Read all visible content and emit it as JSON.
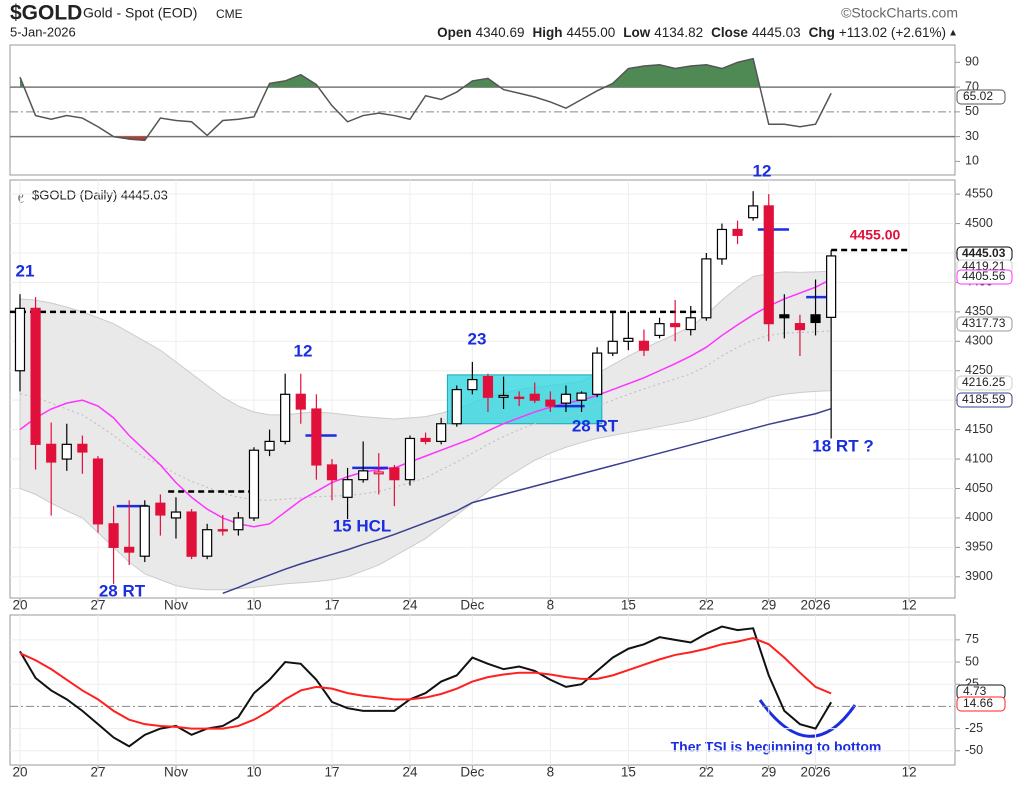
{
  "chart_data": [
    {
      "type": "line",
      "series": [
        {
          "color": "#555555",
          "values": [
            78,
            47,
            44,
            47,
            45,
            38,
            30,
            28,
            27,
            45,
            43,
            42,
            31,
            43,
            44,
            46,
            73,
            75,
            80,
            72,
            55,
            42,
            47,
            49,
            47,
            44,
            63,
            60,
            66,
            75,
            77,
            68,
            65,
            62,
            58,
            53,
            60,
            67,
            73,
            85,
            87,
            88,
            85,
            87,
            88,
            85,
            90,
            93,
            40,
            40,
            38,
            40,
            65.02
          ]
        }
      ],
      "upper_fill": "#4f8a55",
      "lower_fill": "#c0392b",
      "upper_level": 70,
      "lower_level": 30,
      "levels": [
        30,
        50,
        70
      ],
      "xlim": [
        -0.64,
        59.94
      ],
      "ylim": [
        -1,
        104
      ],
      "yticks": [
        10,
        30,
        50,
        70,
        90
      ]
    },
    {
      "type": "candlestick",
      "symbol": "$GOLD",
      "name": "Gold - Spot (EOD)",
      "exchange": "CME",
      "source": "©StockCharts.com",
      "date": "5-Jan-2026",
      "stats": [
        {
          "label": "Open",
          "value": 4340.69
        },
        {
          "label": "High",
          "value": 4455,
          "value_label": "4455.00"
        },
        {
          "label": "Low",
          "value": 4134.82
        },
        {
          "label": "Close",
          "value": 4445.03
        },
        {
          "label": "Chg",
          "value": 113.02,
          "value_label": "+113.02 (+2.61%)"
        }
      ],
      "title": "$GOLD (Daily) 4445.03",
      "open": [
        4250,
        4356,
        4125,
        4100,
        4125,
        4100,
        3990,
        3950,
        3935,
        4025,
        4000,
        4010,
        3935,
        3980,
        3980,
        4000,
        4115,
        4130,
        4210,
        4185,
        4090,
        4035,
        4065,
        4075,
        4085,
        4065,
        4135,
        4130,
        4160,
        4218,
        4240,
        4205,
        4205,
        4210,
        4200,
        4195,
        4200,
        4210,
        4280,
        4300,
        4300,
        4310,
        4330,
        4320,
        4340,
        4440,
        4490,
        4510,
        4530,
        4345,
        4330,
        4345,
        4340.69
      ],
      "high": [
        4380,
        4375,
        4162,
        4160,
        4140,
        4105,
        4020,
        4030,
        4030,
        4040,
        4035,
        4015,
        3990,
        4005,
        4010,
        4120,
        4150,
        4245,
        4245,
        4210,
        4100,
        4085,
        4130,
        4110,
        4090,
        4140,
        4145,
        4170,
        4225,
        4265,
        4245,
        4240,
        4215,
        4230,
        4215,
        4225,
        4215,
        4290,
        4350,
        4350,
        4320,
        4340,
        4370,
        4360,
        4450,
        4500,
        4505,
        4555,
        4550,
        4380,
        4345,
        4405,
        4455
      ],
      "low": [
        4215,
        4082,
        4004,
        4080,
        4075,
        3975,
        3888,
        3920,
        3925,
        3970,
        3965,
        3930,
        3930,
        3970,
        3970,
        3995,
        4105,
        4125,
        4160,
        4065,
        4030,
        3998,
        4060,
        4040,
        4020,
        4055,
        4125,
        4125,
        4155,
        4210,
        4180,
        4185,
        4190,
        4195,
        4180,
        4180,
        4180,
        4205,
        4275,
        4285,
        4275,
        4305,
        4300,
        4310,
        4335,
        4430,
        4465,
        4505,
        4300,
        4305,
        4275,
        4310,
        4134.82
      ],
      "close": [
        4356,
        4125,
        4095,
        4125,
        4112,
        3990,
        3950,
        3942,
        4020,
        4005,
        4010,
        3935,
        3980,
        3978,
        4000,
        4115,
        4130,
        4210,
        4185,
        4090,
        4065,
        4065,
        4080,
        4078,
        4065,
        4135,
        4130,
        4160,
        4218,
        4235,
        4205,
        4208,
        4205,
        4200,
        4190,
        4210,
        4212,
        4280,
        4300,
        4305,
        4285,
        4330,
        4325,
        4340,
        4440,
        4490,
        4480,
        4530,
        4330,
        4340,
        4320,
        4332,
        4445.03
      ],
      "up_color": "#000000",
      "down_color": "#e0103a",
      "band": {
        "fill": "#e9e9e9",
        "color": "#cccccc",
        "upper": [
          4372,
          4370,
          4365,
          4358,
          4350,
          4340,
          4330,
          4315,
          4300,
          4285,
          4265,
          4245,
          4225,
          4205,
          4190,
          4180,
          4175,
          4175,
          4178,
          4180,
          4178,
          4175,
          4172,
          4170,
          4168,
          4170,
          4172,
          4178,
          4185,
          4195,
          4205,
          4212,
          4218,
          4222,
          4225,
          4228,
          4232,
          4245,
          4260,
          4275,
          4288,
          4300,
          4312,
          4325,
          4345,
          4370,
          4392,
          4410,
          4415,
          4418,
          4417,
          4418,
          4419.21
        ],
        "lower": [
          4050,
          4040,
          4025,
          4012,
          4000,
          3975,
          3950,
          3925,
          3905,
          3895,
          3885,
          3880,
          3878,
          3878,
          3880,
          3882,
          3885,
          3888,
          3890,
          3892,
          3895,
          3900,
          3910,
          3920,
          3935,
          3950,
          3965,
          3985,
          4005,
          4025,
          4045,
          4065,
          4082,
          4098,
          4110,
          4120,
          4128,
          4135,
          4140,
          4145,
          4150,
          4155,
          4160,
          4165,
          4172,
          4180,
          4188,
          4195,
          4205,
          4210,
          4213,
          4215,
          4216.25
        ]
      },
      "series": [
        {
          "color": "#bbbbbb",
          "dash": true,
          "values": [
            4211,
            4205,
            4195,
            4185,
            4175,
            4158,
            4140,
            4120,
            4103,
            4090,
            4075,
            4062,
            4052,
            4042,
            4035,
            4031,
            4030,
            4032,
            4034,
            4036,
            4037,
            4038,
            4041,
            4045,
            4052,
            4060,
            4068,
            4082,
            4095,
            4110,
            4125,
            4138,
            4150,
            4160,
            4168,
            4174,
            4180,
            4190,
            4200,
            4210,
            4219,
            4228,
            4236,
            4245,
            4258,
            4275,
            4290,
            4302,
            4310,
            4314,
            4315,
            4316,
            4317.73
          ]
        },
        {
          "color": "#ff33ff",
          "values": [
            4150,
            4170,
            4185,
            4195,
            4200,
            4190,
            4170,
            4140,
            4115,
            4090,
            4060,
            4035,
            4015,
            4000,
            3990,
            3985,
            3990,
            4010,
            4030,
            4045,
            4060,
            4070,
            4078,
            4082,
            4085,
            4095,
            4105,
            4115,
            4125,
            4135,
            4148,
            4160,
            4170,
            4180,
            4188,
            4195,
            4200,
            4208,
            4218,
            4228,
            4238,
            4250,
            4262,
            4275,
            4290,
            4310,
            4328,
            4345,
            4360,
            4372,
            4382,
            4392,
            4405.56
          ]
        },
        {
          "color": "#3a3f8f",
          "values": [
            null,
            null,
            null,
            null,
            null,
            null,
            null,
            null,
            null,
            null,
            null,
            null,
            null,
            3872,
            3882,
            3893,
            3903,
            3913,
            3922,
            3930,
            3938,
            3946,
            3955,
            3963,
            3972,
            3982,
            3992,
            4002,
            4012,
            4026,
            4033,
            4040,
            4047,
            4054,
            4061,
            4068,
            4075,
            4082,
            4089,
            4096,
            4103,
            4110,
            4117,
            4124,
            4131,
            4138,
            4145,
            4152,
            4159,
            4165,
            4171,
            4177,
            4185.59
          ]
        }
      ],
      "highlight": {
        "from": 27.4,
        "to": 37.3,
        "low": 4160,
        "high": 4243,
        "color": "#33d6e0"
      },
      "levels": [
        {
          "value": 4350,
          "from": -0.64,
          "to": 43.6,
          "color": "#000000",
          "dash": true
        },
        {
          "value": 4045,
          "from": 9.5,
          "to": 15.2,
          "color": "#000000",
          "dash": true
        },
        {
          "value": 4455,
          "from": 52,
          "to": 57,
          "color": "#000000",
          "dash": true
        },
        {
          "value": 4020,
          "from": 6.2,
          "to": 8.2,
          "color": "#1a2ee0"
        },
        {
          "value": 4140,
          "from": 18.3,
          "to": 20.3,
          "color": "#1a2ee0"
        },
        {
          "value": 4085,
          "from": 21.3,
          "to": 23.6,
          "color": "#1a2ee0"
        },
        {
          "value": 4190,
          "from": 34.2,
          "to": 36.2,
          "color": "#1a2ee0"
        },
        {
          "value": 4490,
          "from": 47.3,
          "to": 49.3,
          "color": "#1a2ee0"
        },
        {
          "value": 4375,
          "from": 50.4,
          "to": 52.3,
          "color": "#1a2ee0"
        }
      ],
      "annotations": [
        {
          "text": "21",
          "color": "#1a2ee0"
        },
        {
          "text": "12",
          "color": "#1a2ee0"
        },
        {
          "text": "23",
          "color": "#1a2ee0"
        },
        {
          "text": "12",
          "color": "#1a2ee0"
        },
        {
          "text": "28 RT",
          "color": "#1a2ee0"
        },
        {
          "text": "15 HCL",
          "color": "#1a2ee0"
        },
        {
          "text": "28 RT",
          "color": "#1a2ee0"
        },
        {
          "text": "18 RT ?",
          "color": "#1a2ee0"
        },
        {
          "text": "4455.00",
          "color": "#e0103a"
        }
      ],
      "xlim": [
        -0.64,
        59.94
      ],
      "ylim": [
        3864,
        4574
      ],
      "yticks": [
        3900,
        3950,
        4000,
        4050,
        4100,
        4150,
        4200,
        4250,
        4300,
        4350,
        4400,
        4450,
        4500,
        4550
      ],
      "xticks": [
        {
          "value": 0,
          "label": "20"
        },
        {
          "value": 5,
          "label": "27"
        },
        {
          "value": 10,
          "label": "Nov"
        },
        {
          "value": 15,
          "label": "10"
        },
        {
          "value": 20,
          "label": "17"
        },
        {
          "value": 25,
          "label": "24"
        },
        {
          "value": 29,
          "label": "Dec"
        },
        {
          "value": 34,
          "label": "8"
        },
        {
          "value": 39,
          "label": "15"
        },
        {
          "value": 44,
          "label": "22"
        },
        {
          "value": 48,
          "label": "29"
        },
        {
          "value": 51,
          "label": "2026"
        },
        {
          "value": 57,
          "label": "12"
        }
      ],
      "grid": true
    },
    {
      "type": "line",
      "series": [
        {
          "color": "#111111",
          "values": [
            62,
            32,
            18,
            8,
            -5,
            -20,
            -35,
            -45,
            -32,
            -25,
            -22,
            -32,
            -25,
            -22,
            -12,
            15,
            30,
            50,
            48,
            30,
            5,
            -2,
            -5,
            -5,
            -5,
            8,
            15,
            28,
            35,
            55,
            48,
            42,
            45,
            40,
            30,
            22,
            25,
            40,
            55,
            65,
            70,
            78,
            75,
            72,
            82,
            90,
            86,
            88,
            35,
            -5,
            -20,
            -25,
            4.73
          ]
        },
        {
          "color": "#ff2020",
          "values": [
            60,
            52,
            42,
            30,
            18,
            8,
            -5,
            -15,
            -20,
            -22,
            -23,
            -25,
            -25,
            -25,
            -22,
            -15,
            -5,
            8,
            18,
            22,
            20,
            15,
            12,
            10,
            8,
            8,
            10,
            14,
            20,
            28,
            33,
            36,
            38,
            38,
            36,
            33,
            31,
            31,
            35,
            41,
            47,
            53,
            58,
            61,
            65,
            70,
            73,
            77,
            70,
            55,
            38,
            22,
            14.66
          ]
        }
      ],
      "levels": [
        0
      ],
      "annotation": "Ther TSI is beginning to bottom",
      "xlim": [
        -0.64,
        59.94
      ],
      "ylim": [
        -66,
        103
      ],
      "yticks": [
        -50,
        -25,
        25,
        50,
        75
      ],
      "xticks": [
        {
          "value": 0,
          "label": "20"
        },
        {
          "value": 5,
          "label": "27"
        },
        {
          "value": 10,
          "label": "Nov"
        },
        {
          "value": 15,
          "label": "10"
        },
        {
          "value": 20,
          "label": "17"
        },
        {
          "value": 25,
          "label": "24"
        },
        {
          "value": 29,
          "label": "Dec"
        },
        {
          "value": 34,
          "label": "8"
        },
        {
          "value": 39,
          "label": "15"
        },
        {
          "value": 44,
          "label": "22"
        },
        {
          "value": 48,
          "label": "29"
        },
        {
          "value": 51,
          "label": "2026"
        },
        {
          "value": 57,
          "label": "12"
        }
      ],
      "grid": true
    }
  ]
}
